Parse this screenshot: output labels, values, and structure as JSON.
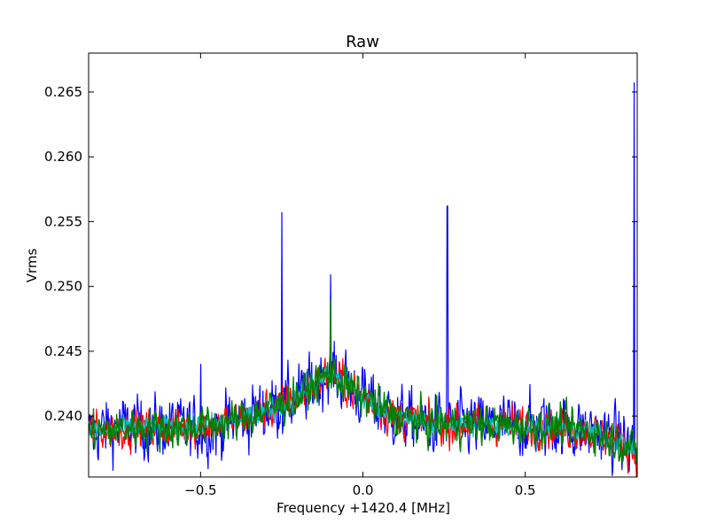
{
  "chart_data": {
    "type": "line",
    "title": "Raw",
    "xlabel": "Frequency +1420.4 [MHz]",
    "ylabel": "Vrms",
    "xlim": [
      -0.845,
      0.845
    ],
    "ylim": [
      0.2353,
      0.268
    ],
    "grid": false,
    "x_ticks": [
      -0.5,
      0.0,
      0.5
    ],
    "x_tick_labels": [
      "−0.5",
      "0.0",
      "0.5"
    ],
    "y_ticks": [
      0.24,
      0.245,
      0.25,
      0.255,
      0.26,
      0.265
    ],
    "y_tick_labels": [
      "0.240",
      "0.245",
      "0.250",
      "0.255",
      "0.260",
      "0.265"
    ],
    "series": [
      {
        "color": "#0000ff",
        "points": [
          [
            -0.845,
            0.2385
          ],
          [
            -0.8,
            0.239
          ],
          [
            -0.75,
            0.2392
          ],
          [
            -0.7,
            0.239
          ],
          [
            -0.65,
            0.2392
          ],
          [
            -0.6,
            0.2392
          ],
          [
            -0.55,
            0.239
          ],
          [
            -0.501,
            0.239
          ],
          [
            -0.5,
            0.244
          ],
          [
            -0.499,
            0.239
          ],
          [
            -0.45,
            0.239
          ],
          [
            -0.4,
            0.2395
          ],
          [
            -0.35,
            0.24
          ],
          [
            -0.3,
            0.2405
          ],
          [
            -0.252,
            0.2408
          ],
          [
            -0.25,
            0.2557
          ],
          [
            -0.248,
            0.2408
          ],
          [
            -0.2,
            0.2415
          ],
          [
            -0.15,
            0.2425
          ],
          [
            -0.13,
            0.243
          ],
          [
            -0.102,
            0.2435
          ],
          [
            -0.1,
            0.2509
          ],
          [
            -0.098,
            0.2435
          ],
          [
            -0.05,
            0.2425
          ],
          [
            0.0,
            0.2415
          ],
          [
            0.05,
            0.2405
          ],
          [
            0.1,
            0.24
          ],
          [
            0.15,
            0.2395
          ],
          [
            0.2,
            0.2393
          ],
          [
            0.258,
            0.2393
          ],
          [
            0.26,
            0.2562
          ],
          [
            0.262,
            0.2393
          ],
          [
            0.3,
            0.2393
          ],
          [
            0.35,
            0.2393
          ],
          [
            0.4,
            0.2393
          ],
          [
            0.45,
            0.2393
          ],
          [
            0.5,
            0.2393
          ],
          [
            0.55,
            0.2393
          ],
          [
            0.6,
            0.2392
          ],
          [
            0.65,
            0.239
          ],
          [
            0.7,
            0.2388
          ],
          [
            0.75,
            0.2385
          ],
          [
            0.82,
            0.2378
          ],
          [
            0.834,
            0.2375
          ],
          [
            0.836,
            0.2657
          ],
          [
            0.838,
            0.2375
          ],
          [
            0.845,
            0.2372
          ]
        ]
      },
      {
        "color": "#ff0000",
        "points": [
          [
            -0.845,
            0.2388
          ],
          [
            -0.7,
            0.2391
          ],
          [
            -0.55,
            0.2391
          ],
          [
            -0.4,
            0.2396
          ],
          [
            -0.3,
            0.2404
          ],
          [
            -0.2,
            0.2414
          ],
          [
            -0.13,
            0.2428
          ],
          [
            -0.1,
            0.2435
          ],
          [
            -0.05,
            0.2424
          ],
          [
            0.0,
            0.2414
          ],
          [
            0.1,
            0.24
          ],
          [
            0.2,
            0.2394
          ],
          [
            0.4,
            0.2393
          ],
          [
            0.6,
            0.2392
          ],
          [
            0.7,
            0.2388
          ],
          [
            0.8,
            0.238
          ],
          [
            0.845,
            0.2372
          ]
        ]
      },
      {
        "color": "#00bfbf",
        "points": [
          [
            -0.845,
            0.2388
          ],
          [
            -0.7,
            0.2391
          ],
          [
            -0.55,
            0.2391
          ],
          [
            -0.4,
            0.2396
          ],
          [
            -0.3,
            0.2404
          ],
          [
            -0.2,
            0.2414
          ],
          [
            -0.13,
            0.2428
          ],
          [
            -0.1,
            0.2433
          ],
          [
            -0.05,
            0.2424
          ],
          [
            0.0,
            0.2414
          ],
          [
            0.1,
            0.24
          ],
          [
            0.2,
            0.2394
          ],
          [
            0.4,
            0.2393
          ],
          [
            0.6,
            0.2392
          ],
          [
            0.7,
            0.2388
          ],
          [
            0.8,
            0.238
          ],
          [
            0.845,
            0.2372
          ]
        ]
      },
      {
        "color": "#008000",
        "points": [
          [
            -0.845,
            0.2388
          ],
          [
            -0.7,
            0.2391
          ],
          [
            -0.55,
            0.2391
          ],
          [
            -0.4,
            0.2396
          ],
          [
            -0.3,
            0.2404
          ],
          [
            -0.2,
            0.2414
          ],
          [
            -0.13,
            0.2428
          ],
          [
            -0.102,
            0.2433
          ],
          [
            -0.1,
            0.2489
          ],
          [
            -0.098,
            0.2433
          ],
          [
            -0.05,
            0.2424
          ],
          [
            0.0,
            0.2414
          ],
          [
            0.1,
            0.24
          ],
          [
            0.2,
            0.2394
          ],
          [
            0.4,
            0.2393
          ],
          [
            0.6,
            0.2392
          ],
          [
            0.7,
            0.2388
          ],
          [
            0.8,
            0.238
          ],
          [
            0.845,
            0.2372
          ]
        ]
      }
    ]
  }
}
